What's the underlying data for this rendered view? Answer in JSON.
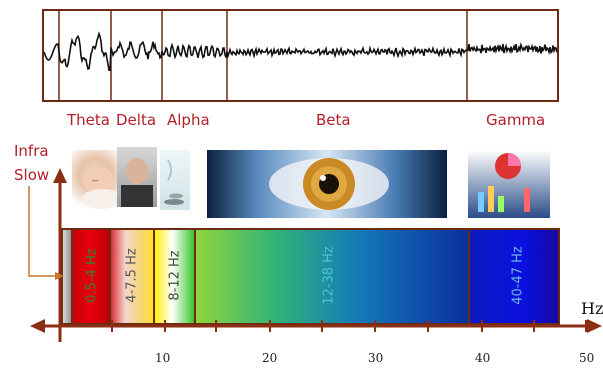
{
  "bands": {
    "theta": "Theta",
    "delta": "Delta",
    "alpha": "Alpha",
    "beta": "Beta",
    "gamma": "Gamma"
  },
  "infra_slow": [
    "Infra",
    "Slow"
  ],
  "frequency_ranges": [
    "0.5-4 Hz",
    "4-7.5 Hz",
    "8-12 Hz",
    "12-38 Hz",
    "40-47 Hz"
  ],
  "axis": {
    "unit": "Hz",
    "ticks": [
      "10",
      "20",
      "30",
      "40",
      "50"
    ]
  },
  "icons": [
    "sleeping-baby-icon",
    "sleeping-man-icon",
    "relaxation-icon",
    "eye-icon",
    "data-chart-icon"
  ],
  "colors": {
    "band_text": "#b3202a",
    "frame": "#6b2a14",
    "axis": "#8b2e12"
  }
}
